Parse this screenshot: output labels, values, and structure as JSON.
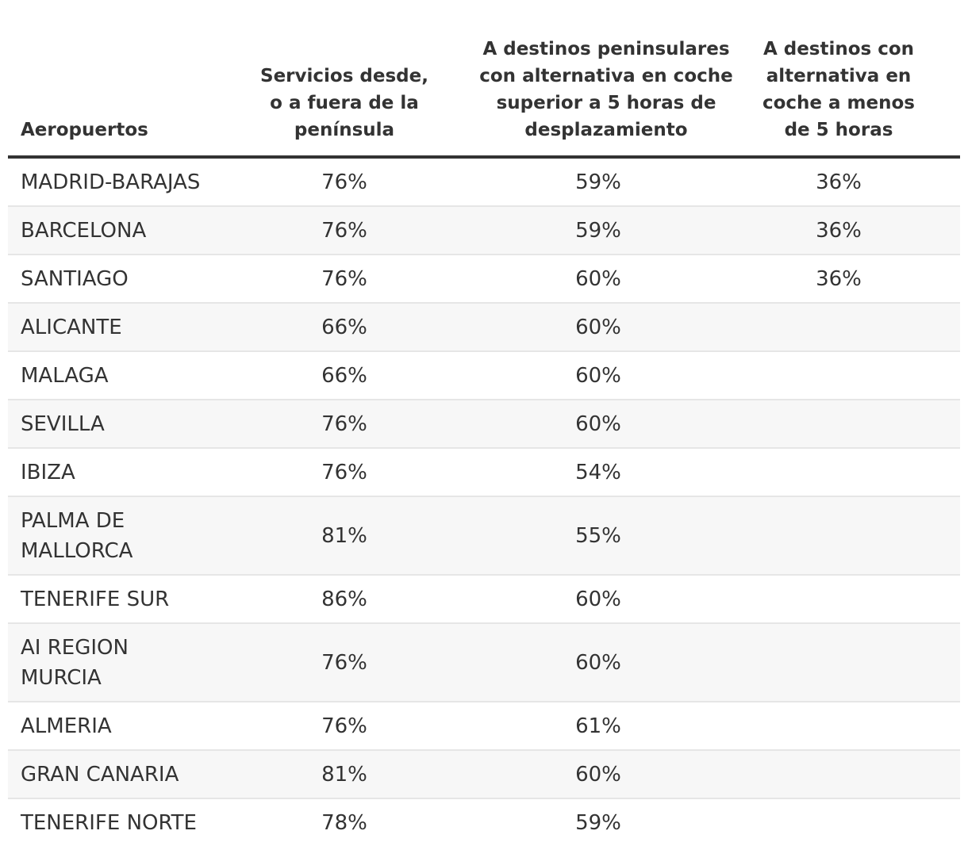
{
  "chart_data": {
    "type": "table",
    "columns": [
      "Aeropuertos",
      "Servicios desde, o a fuera de la península",
      "A destinos peninsulares con alternativa en coche superior a 5 horas de desplazamiento",
      "A destinos con alternativa en coche a menos de 5 horas"
    ],
    "rows": [
      [
        "MADRID-BARAJAS",
        "76%",
        "59%",
        "36%"
      ],
      [
        "BARCELONA",
        "76%",
        "59%",
        "36%"
      ],
      [
        "SANTIAGO",
        "76%",
        "60%",
        "36%"
      ],
      [
        "ALICANTE",
        "66%",
        "60%",
        ""
      ],
      [
        "MALAGA",
        "66%",
        "60%",
        ""
      ],
      [
        "SEVILLA",
        "76%",
        "60%",
        ""
      ],
      [
        "IBIZA",
        "76%",
        "54%",
        ""
      ],
      [
        "PALMA DE MALLORCA",
        "81%",
        "55%",
        ""
      ],
      [
        "TENERIFE SUR",
        "86%",
        "60%",
        ""
      ],
      [
        "AI REGION MURCIA",
        "76%",
        "60%",
        ""
      ],
      [
        "ALMERIA",
        "76%",
        "61%",
        ""
      ],
      [
        "GRAN CANARIA",
        "81%",
        "60%",
        ""
      ],
      [
        "TENERIFE NORTE",
        "78%",
        "59%",
        ""
      ]
    ]
  },
  "colors": {
    "text": "#333333",
    "header_rule": "#333333",
    "row_alt": "#f7f7f7",
    "row_divider": "#e6e6e6"
  }
}
